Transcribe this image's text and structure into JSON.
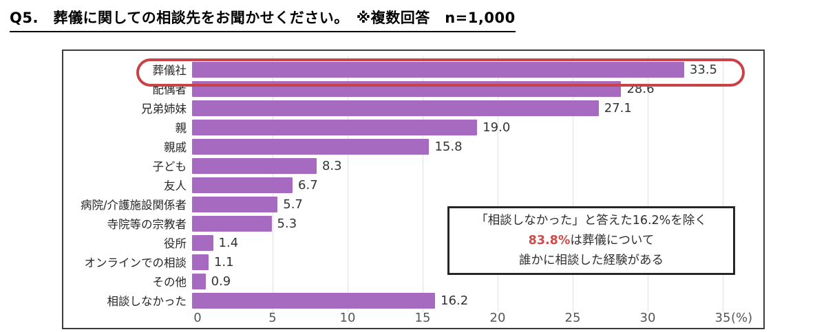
{
  "title": "Q5.　葬儀に関しての相談先をお聞かせください。　※複数回答　n=1,000",
  "chart_data": {
    "type": "bar",
    "orientation": "horizontal",
    "title": "葬儀に関しての相談先（複数回答 n=1,000）",
    "categories": [
      "葬儀社",
      "配偶者",
      "兄弟姉妹",
      "親",
      "親戚",
      "子ども",
      "友人",
      "病院/介護施設関係者",
      "寺院等の宗教者",
      "役所",
      "オンラインでの相談",
      "その他",
      "相談しなかった"
    ],
    "values": [
      33.5,
      28.6,
      27.1,
      19.0,
      15.8,
      8.3,
      6.7,
      5.7,
      5.3,
      1.4,
      1.1,
      0.9,
      16.2
    ],
    "value_labels": [
      "33.5",
      "28.6",
      "27.1",
      "19.0",
      "15.8",
      "8.3",
      "6.7",
      "5.7",
      "5.3",
      "1.4",
      "1.1",
      "0.9",
      "16.2"
    ],
    "xlabel_unit": "(%)",
    "xlim": [
      0,
      35
    ],
    "x_ticks": [
      0,
      5,
      10,
      15,
      20,
      25,
      30,
      35
    ],
    "grid": true,
    "legend": false,
    "bar_color": "#a66ac1",
    "highlight_index": 0,
    "highlight_color": "#c84248"
  },
  "annotation": {
    "line1": "「相談しなかった」と答えた16.2%を除く",
    "line2_highlight": "83.8%",
    "line2_rest": "は葬儀について",
    "line3": "誰かに相談した経験がある",
    "highlight_color": "#d04a4a"
  }
}
